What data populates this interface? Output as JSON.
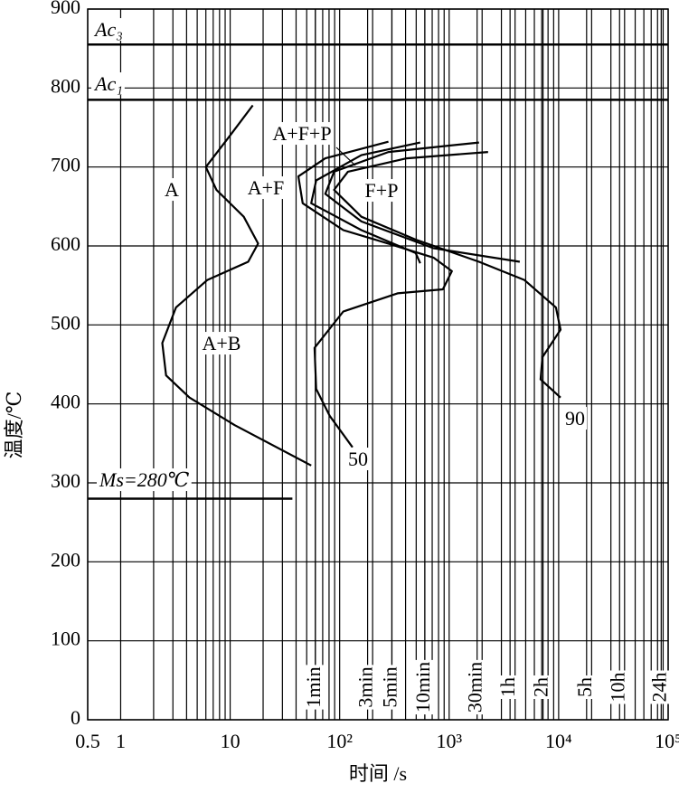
{
  "chart_data": {
    "type": "line",
    "log_x": true,
    "grid": true,
    "xlabel": "时间 /s",
    "ylabel": "温度/℃",
    "xlim": [
      0.5,
      100000
    ],
    "ylim": [
      0,
      900
    ],
    "xticks": [
      0.5,
      1,
      10,
      {
        "value": 100,
        "label": "10²"
      },
      {
        "value": 1000,
        "label": "10³"
      },
      {
        "value": 10000,
        "label": "10⁴"
      },
      {
        "value": 100000,
        "label": "10⁵"
      }
    ],
    "xminor": [
      2,
      3,
      4,
      5,
      6,
      7,
      8,
      9,
      20,
      30,
      40,
      50,
      60,
      70,
      80,
      90,
      200,
      300,
      400,
      500,
      600,
      700,
      800,
      900,
      2000,
      3000,
      4000,
      5000,
      6000,
      7000,
      8000,
      9000,
      20000,
      30000,
      40000,
      50000,
      60000,
      70000,
      80000,
      90000
    ],
    "yticks": [
      0,
      100,
      200,
      300,
      400,
      500,
      600,
      700,
      800,
      900
    ],
    "time_marks": [
      {
        "value": 60,
        "label": "1min"
      },
      {
        "value": 180,
        "label": "3min"
      },
      {
        "value": 300,
        "label": "5min"
      },
      {
        "value": 600,
        "label": "10min"
      },
      {
        "value": 1800,
        "label": "30min"
      },
      {
        "value": 3600,
        "label": "1h"
      },
      {
        "value": 7200,
        "label": "2h"
      },
      {
        "value": 18000,
        "label": "5h"
      },
      {
        "value": 36000,
        "label": "10h"
      },
      {
        "value": 86400,
        "label": "24h"
      }
    ],
    "hlines": [
      {
        "label": "Ac₃",
        "value": 855
      },
      {
        "label": "Ac₁",
        "value": 785
      },
      {
        "label": "Ms=280℃",
        "value": 280,
        "end": 37
      }
    ],
    "annotations": [
      "A",
      "A+F",
      "A+F+P",
      "F+P",
      "A+B",
      "50",
      "90"
    ],
    "series": [
      {
        "color": "#000000",
        "x": [
          16.1,
          10,
          6.0,
          7.5,
          13.3,
          18,
          14.6,
          6.2,
          3.2,
          2.4,
          2.6,
          4.25,
          11,
          55
        ],
        "values": [
          778,
          740,
          700,
          671,
          637,
          603,
          580,
          557,
          522,
          477,
          436,
          408,
          373,
          322
        ]
      },
      {
        "color": "#000000",
        "x": [
          279,
          74,
          42,
          46,
          108,
          279,
          724,
          1059,
          875,
          338,
          108,
          59,
          61,
          81,
          131
        ],
        "values": [
          732,
          711,
          688,
          654,
          620,
          603,
          585,
          568,
          545,
          540,
          517,
          471,
          419,
          385,
          345
        ]
      },
      {
        "color": "#000000",
        "x": [
          544,
          158,
          61,
          55,
          158,
          495,
          544
        ],
        "values": [
          731,
          715,
          683,
          654,
          620,
          591,
          578
        ]
      },
      {
        "color": "#000000",
        "x": [
          1875,
          279,
          89,
          74,
          158,
          724,
          4414
        ],
        "values": [
          731,
          719,
          694,
          666,
          631,
          597,
          580
        ]
      },
      {
        "color": "#000000",
        "x": [
          2265,
          409,
          119,
          89,
          158,
          495,
          1875,
          4853,
          9440,
          10400,
          7100,
          6840,
          10400
        ],
        "values": [
          719,
          711,
          694,
          671,
          637,
          608,
          580,
          557,
          522,
          494,
          459,
          431,
          408
        ]
      }
    ]
  }
}
